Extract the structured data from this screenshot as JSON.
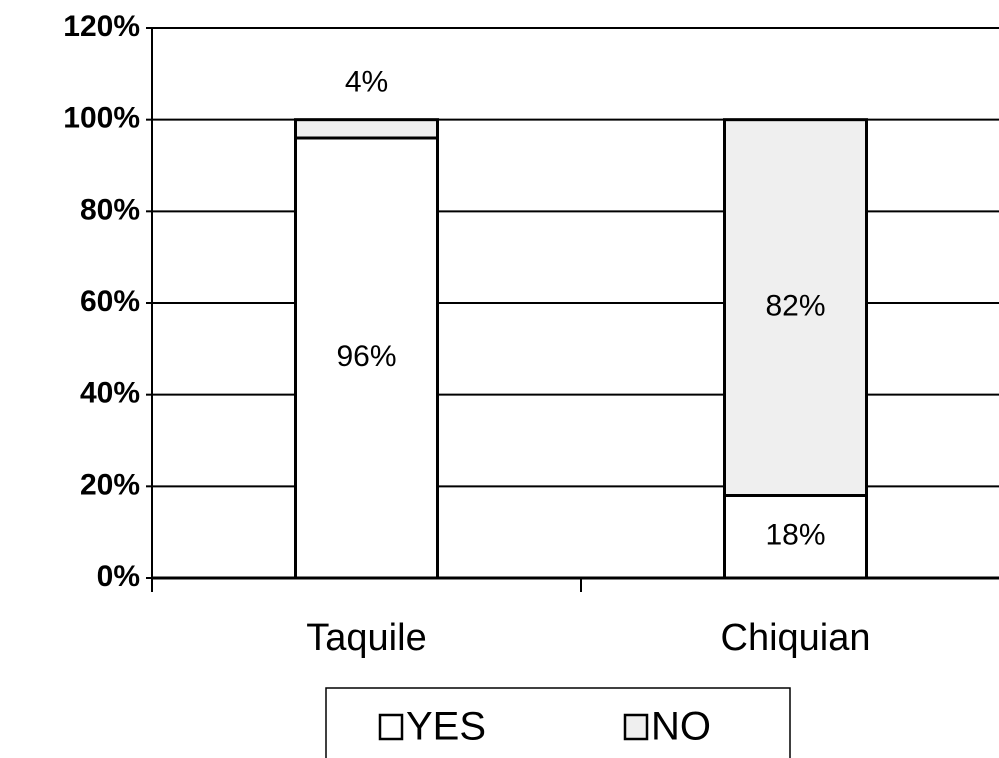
{
  "chart_data": {
    "type": "stacked_bar",
    "categories": [
      "Taquile",
      "Chiquian"
    ],
    "series": [
      {
        "name": "YES",
        "color": "#ffffff",
        "values": [
          96,
          18
        ],
        "value_labels": [
          "96%",
          "18%"
        ]
      },
      {
        "name": "NO",
        "color": "#efefef",
        "values": [
          4,
          82
        ],
        "value_labels": [
          "4%",
          "82%"
        ]
      }
    ],
    "ylim": [
      0,
      120
    ],
    "yticks": [
      {
        "value": 0,
        "label": "0%"
      },
      {
        "value": 20,
        "label": "20%"
      },
      {
        "value": 40,
        "label": "40%"
      },
      {
        "value": 60,
        "label": "60%"
      },
      {
        "value": 80,
        "label": "80%"
      },
      {
        "value": 100,
        "label": "100%"
      },
      {
        "value": 120,
        "label": "120%"
      }
    ],
    "grid": true,
    "legend": "bottom"
  }
}
